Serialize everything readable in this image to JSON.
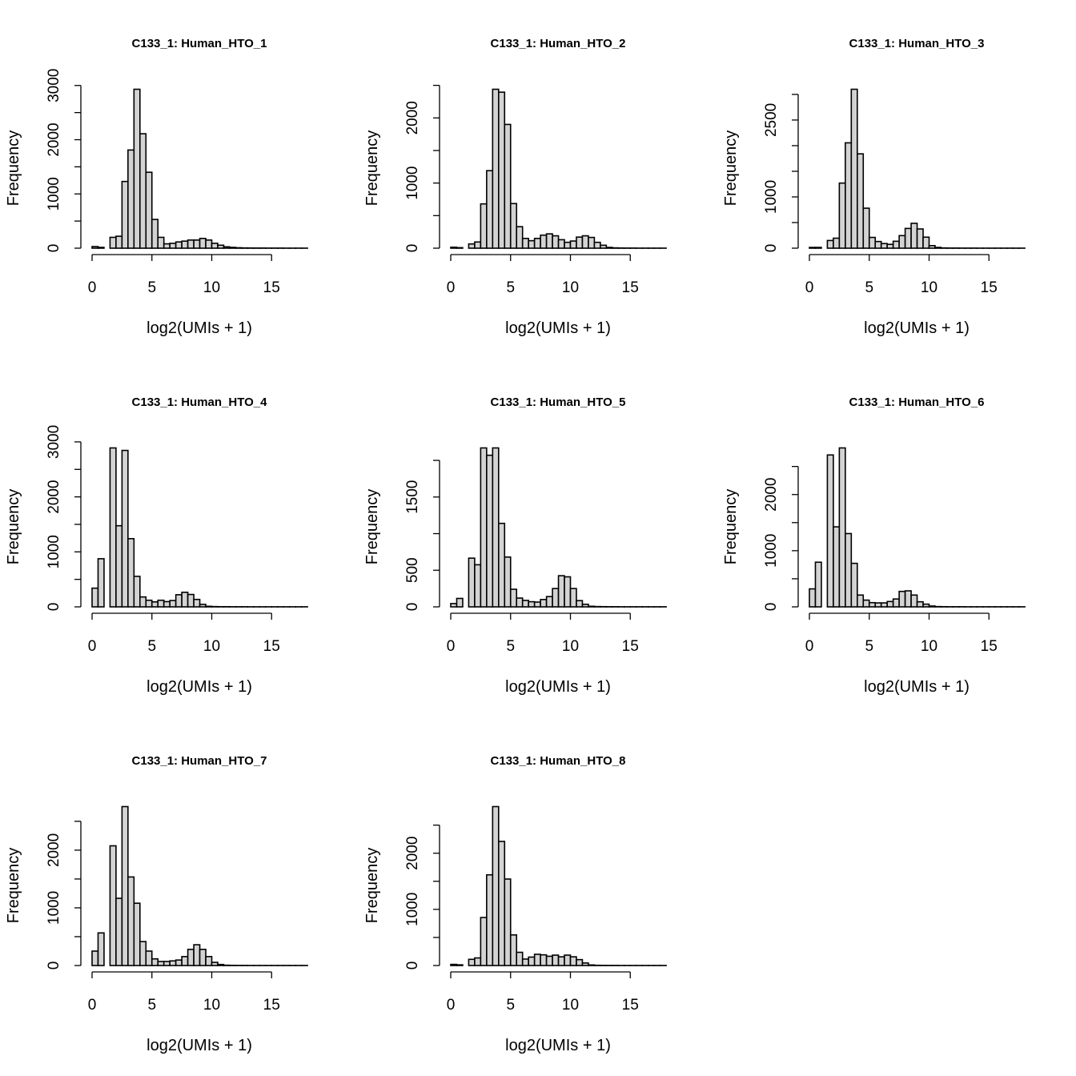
{
  "chart_data": [
    {
      "type": "bar",
      "title": "C133_1: Human_HTO_1",
      "xlabel": "log2(UMIs + 1)",
      "ylabel": "Frequency",
      "bin_width": 0.5,
      "x_start": 0,
      "xticks": [
        0,
        5,
        10,
        15
      ],
      "yticks": [
        0,
        500,
        1000,
        1500,
        2000,
        2500,
        3000
      ],
      "ytick_labels": [
        0,
        1000,
        2000,
        3000
      ],
      "bar_color": "#d3d3d3",
      "values": [
        30,
        15,
        0,
        200,
        220,
        1230,
        1810,
        2930,
        2110,
        1400,
        530,
        200,
        80,
        90,
        115,
        130,
        150,
        150,
        180,
        150,
        90,
        55,
        25,
        15,
        8,
        5,
        4,
        3,
        3,
        2,
        2,
        2,
        1,
        1,
        1,
        1
      ]
    },
    {
      "type": "bar",
      "title": "C133_1: Human_HTO_2",
      "xlabel": "log2(UMIs + 1)",
      "ylabel": "Frequency",
      "bin_width": 0.5,
      "x_start": 0,
      "xticks": [
        0,
        5,
        10,
        15
      ],
      "yticks": [
        0,
        500,
        1000,
        1500,
        2000,
        2500
      ],
      "ytick_labels": [
        0,
        1000,
        2000
      ],
      "bar_color": "#d3d3d3",
      "values": [
        15,
        8,
        0,
        65,
        95,
        680,
        1190,
        2440,
        2395,
        1900,
        685,
        330,
        150,
        115,
        150,
        200,
        220,
        190,
        130,
        90,
        110,
        170,
        190,
        165,
        90,
        45,
        12,
        5,
        3,
        2,
        2,
        1,
        1,
        1,
        1,
        1
      ]
    },
    {
      "type": "bar",
      "title": "C133_1: Human_HTO_3",
      "xlabel": "log2(UMIs + 1)",
      "ylabel": "Frequency",
      "bin_width": 0.5,
      "x_start": 0,
      "xticks": [
        0,
        5,
        10,
        15
      ],
      "yticks": [
        0,
        500,
        1000,
        1500,
        2000,
        2500,
        3000
      ],
      "ytick_labels": [
        0,
        1000,
        2500
      ],
      "bar_color": "#d3d3d3",
      "values": [
        15,
        15,
        0,
        150,
        195,
        1270,
        2055,
        3100,
        1840,
        780,
        210,
        130,
        90,
        75,
        135,
        245,
        385,
        485,
        375,
        215,
        50,
        15,
        5,
        3,
        3,
        2,
        2,
        2,
        1,
        1,
        1,
        1,
        1,
        1,
        1,
        1
      ]
    },
    {
      "type": "bar",
      "title": "C133_1: Human_HTO_4",
      "xlabel": "log2(UMIs + 1)",
      "ylabel": "Frequency",
      "bin_width": 0.5,
      "x_start": 0,
      "xticks": [
        0,
        5,
        10,
        15
      ],
      "yticks": [
        0,
        500,
        1000,
        1500,
        2000,
        2500,
        3000
      ],
      "ytick_labels": [
        0,
        1000,
        2000,
        3000
      ],
      "bar_color": "#d3d3d3",
      "values": [
        340,
        875,
        0,
        2890,
        1475,
        2845,
        1240,
        555,
        180,
        120,
        90,
        120,
        95,
        115,
        220,
        265,
        225,
        135,
        45,
        10,
        5,
        3,
        3,
        2,
        2,
        2,
        1,
        1,
        1,
        1,
        1,
        1,
        1,
        1,
        1,
        1
      ]
    },
    {
      "type": "bar",
      "title": "C133_1: Human_HTO_5",
      "xlabel": "log2(UMIs + 1)",
      "ylabel": "Frequency",
      "bin_width": 0.5,
      "x_start": 0,
      "xticks": [
        0,
        5,
        10,
        15
      ],
      "yticks": [
        0,
        500,
        1000,
        1500,
        2000
      ],
      "ytick_labels": [
        0,
        500,
        1500
      ],
      "bar_color": "#d3d3d3",
      "values": [
        45,
        115,
        0,
        665,
        575,
        2170,
        2070,
        2170,
        1140,
        680,
        240,
        120,
        88,
        70,
        65,
        100,
        140,
        250,
        425,
        410,
        250,
        85,
        35,
        8,
        4,
        3,
        2,
        2,
        1,
        1,
        1,
        1,
        1,
        1,
        1,
        1
      ]
    },
    {
      "type": "bar",
      "title": "C133_1: Human_HTO_6",
      "xlabel": "log2(UMIs + 1)",
      "ylabel": "Frequency",
      "bin_width": 0.5,
      "x_start": 0,
      "xticks": [
        0,
        5,
        10,
        15
      ],
      "yticks": [
        0,
        500,
        1000,
        1500,
        2000,
        2500
      ],
      "ytick_labels": [
        0,
        1000,
        2000
      ],
      "bar_color": "#d3d3d3",
      "values": [
        320,
        795,
        0,
        2705,
        1425,
        2830,
        1305,
        775,
        210,
        120,
        75,
        70,
        70,
        95,
        140,
        275,
        285,
        210,
        90,
        48,
        15,
        5,
        3,
        2,
        2,
        2,
        1,
        1,
        1,
        1,
        1,
        1,
        1,
        1,
        1,
        1
      ]
    },
    {
      "type": "bar",
      "title": "C133_1: Human_HTO_7",
      "xlabel": "log2(UMIs + 1)",
      "ylabel": "Frequency",
      "bin_width": 0.5,
      "x_start": 0,
      "xticks": [
        0,
        5,
        10,
        15
      ],
      "yticks": [
        0,
        500,
        1000,
        1500,
        2000,
        2500
      ],
      "ytick_labels": [
        0,
        1000,
        2000
      ],
      "bar_color": "#d3d3d3",
      "values": [
        250,
        565,
        0,
        2075,
        1165,
        2755,
        1535,
        1080,
        415,
        250,
        115,
        70,
        70,
        80,
        95,
        155,
        280,
        360,
        280,
        155,
        55,
        18,
        5,
        3,
        2,
        2,
        1,
        1,
        1,
        1,
        1,
        1,
        1,
        1,
        1,
        1
      ]
    },
    {
      "type": "bar",
      "title": "C133_1: Human_HTO_8",
      "xlabel": "log2(UMIs + 1)",
      "ylabel": "Frequency",
      "bin_width": 0.5,
      "x_start": 0,
      "xticks": [
        0,
        5,
        10,
        15
      ],
      "yticks": [
        0,
        500,
        1000,
        1500,
        2000,
        2500
      ],
      "ytick_labels": [
        0,
        1000,
        2000
      ],
      "bar_color": "#d3d3d3",
      "values": [
        20,
        12,
        0,
        110,
        135,
        855,
        1615,
        2830,
        2210,
        1540,
        545,
        235,
        115,
        150,
        200,
        190,
        165,
        185,
        155,
        185,
        155,
        105,
        45,
        10,
        4,
        3,
        2,
        2,
        1,
        1,
        1,
        1,
        1,
        1,
        1,
        1
      ]
    }
  ]
}
